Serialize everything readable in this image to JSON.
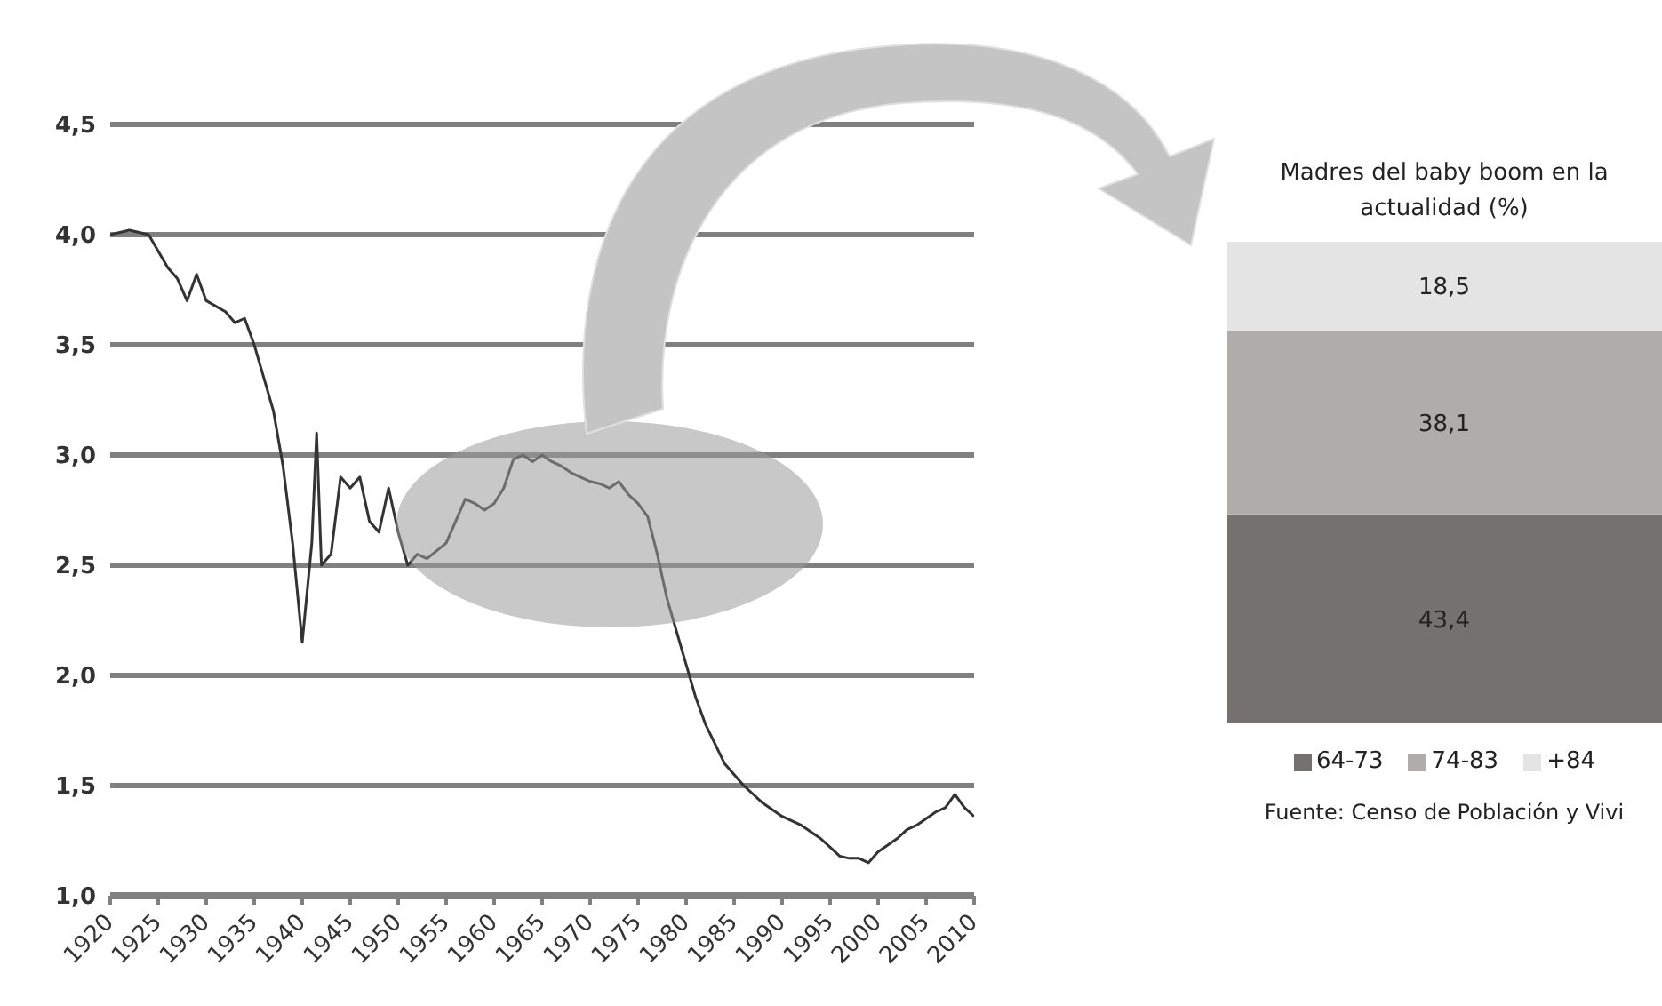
{
  "chart_data": [
    {
      "type": "line",
      "x": [
        1920,
        1922,
        1924,
        1926,
        1927,
        1928,
        1929,
        1930,
        1932,
        1933,
        1934,
        1935,
        1936,
        1937,
        1938,
        1939,
        1940,
        1941,
        1941.5,
        1942,
        1943,
        1944,
        1945,
        1946,
        1947,
        1948,
        1949,
        1950,
        1951,
        1952,
        1953,
        1955,
        1956,
        1957,
        1958,
        1959,
        1960,
        1961,
        1962,
        1963,
        1964,
        1965,
        1966,
        1967,
        1968,
        1969,
        1970,
        1971,
        1972,
        1973,
        1974,
        1975,
        1976,
        1977,
        1978,
        1979,
        1980,
        1981,
        1982,
        1984,
        1986,
        1988,
        1990,
        1992,
        1994,
        1995,
        1996,
        1997,
        1998,
        1999,
        2000,
        2001,
        2002,
        2003,
        2004,
        2005,
        2006,
        2007,
        2008,
        2009,
        2010
      ],
      "series": [
        {
          "color": "#333333",
          "values": [
            4.0,
            4.02,
            4.0,
            3.85,
            3.8,
            3.7,
            3.82,
            3.7,
            3.65,
            3.6,
            3.62,
            3.5,
            3.35,
            3.2,
            2.95,
            2.6,
            2.15,
            2.6,
            3.1,
            2.5,
            2.55,
            2.9,
            2.85,
            2.9,
            2.7,
            2.65,
            2.85,
            2.65,
            2.5,
            2.55,
            2.53,
            2.6,
            2.7,
            2.8,
            2.78,
            2.75,
            2.78,
            2.85,
            2.98,
            3.0,
            2.97,
            3.0,
            2.97,
            2.95,
            2.92,
            2.9,
            2.88,
            2.87,
            2.85,
            2.88,
            2.82,
            2.78,
            2.72,
            2.55,
            2.35,
            2.2,
            2.05,
            1.9,
            1.78,
            1.6,
            1.5,
            1.42,
            1.36,
            1.32,
            1.26,
            1.22,
            1.18,
            1.17,
            1.17,
            1.15,
            1.2,
            1.23,
            1.26,
            1.3,
            1.32,
            1.35,
            1.38,
            1.4,
            1.46,
            1.4,
            1.36
          ]
        }
      ],
      "xlim": [
        1920,
        2010
      ],
      "xticks": [
        1920,
        1925,
        1930,
        1935,
        1940,
        1945,
        1950,
        1955,
        1960,
        1965,
        1970,
        1975,
        1980,
        1985,
        1990,
        1995,
        2000,
        2005,
        2010
      ],
      "ylim": [
        1,
        4.5
      ],
      "yticks": [
        {
          "value": 1,
          "label": "1,0"
        },
        {
          "value": 1.5,
          "label": "1,5"
        },
        {
          "value": 2,
          "label": "2,0"
        },
        {
          "value": 2.5,
          "label": "2,5"
        },
        {
          "value": 3,
          "label": "3,0"
        },
        {
          "value": 3.5,
          "label": "3,5"
        },
        {
          "value": 4,
          "label": "4,0"
        },
        {
          "value": 4.5,
          "label": "4,5"
        }
      ],
      "grid": "y"
    },
    {
      "type": "bar",
      "title": "Madres del baby boom en la actualidad (%)",
      "categories": [
        null
      ],
      "stacked": true,
      "legend": "bottom",
      "series": [
        {
          "name": "64-73",
          "color": "#757170",
          "values": [
            43.4
          ],
          "value_labels": [
            "43,4"
          ]
        },
        {
          "name": "74-83",
          "color": "#b0acab",
          "values": [
            38.1
          ],
          "value_labels": [
            "38,1"
          ]
        },
        {
          "name": "+84",
          "color": "#e4e4e4",
          "values": [
            18.5
          ],
          "value_labels": [
            "18,5"
          ]
        }
      ],
      "annotations": [
        "Fuente: Censo de Población y Vivi"
      ]
    }
  ]
}
